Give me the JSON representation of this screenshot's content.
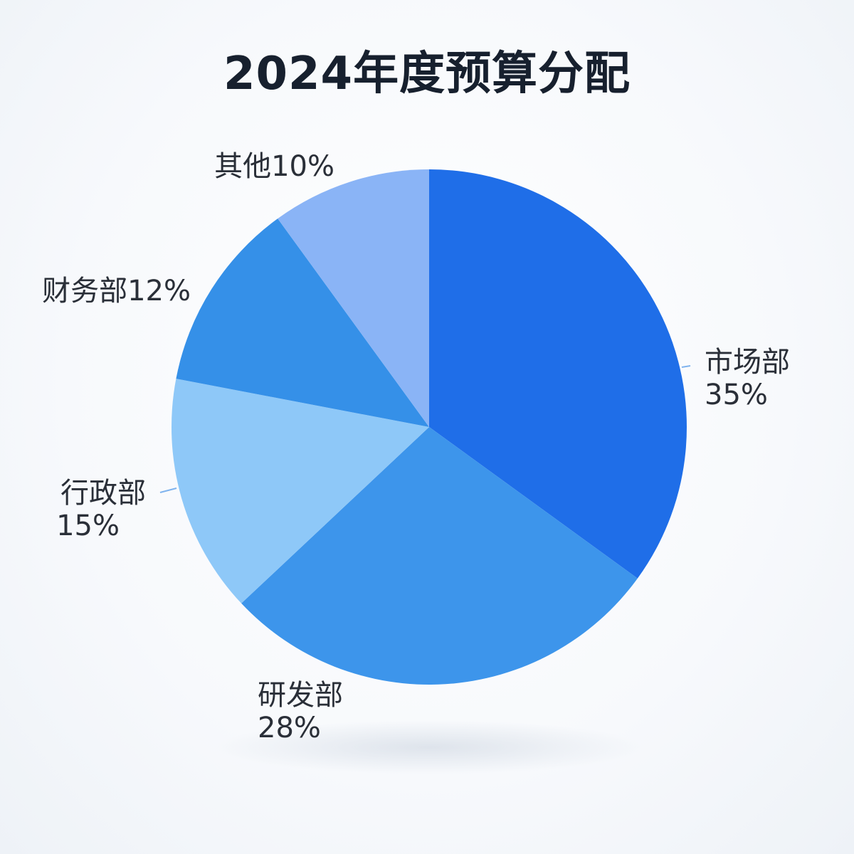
{
  "title": "2024年度预算分配",
  "chart_data": {
    "type": "pie",
    "title": "2024年度预算分配",
    "start": "12 o'clock",
    "direction": "clockwise",
    "legend": "none (labels outside slices)",
    "slices": [
      {
        "label": "市场部",
        "percent_text": "35%",
        "value": 35,
        "color": "#1f6ee8"
      },
      {
        "label": "研发部",
        "percent_text": "28%",
        "value": 28,
        "color": "#3d95eb"
      },
      {
        "label": "行政部",
        "percent_text": "15%",
        "value": 15,
        "color": "#8ec8f8"
      },
      {
        "label": "财务部",
        "percent_text": "12%",
        "value": 12,
        "color": "#3590e8"
      },
      {
        "label": "其他",
        "percent_text": "10%",
        "value": 10,
        "color": "#8ab4f6"
      }
    ]
  }
}
